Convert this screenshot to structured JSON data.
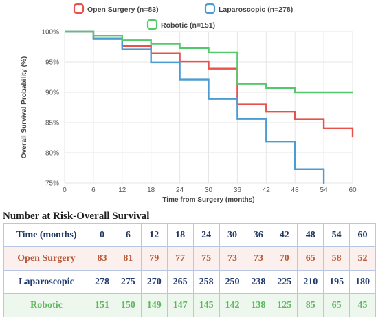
{
  "chart_data": {
    "type": "line",
    "step": true,
    "title": "",
    "xlabel": "Time from Surgery (months)",
    "ylabel": "Overall Survival Probability (%)",
    "xlim": [
      0,
      60
    ],
    "ylim": [
      75,
      100
    ],
    "x_ticks": [
      0,
      6,
      12,
      18,
      24,
      30,
      36,
      42,
      48,
      54,
      60
    ],
    "y_ticks": [
      75,
      80,
      85,
      90,
      95,
      100
    ],
    "y_tick_labels": [
      "75%",
      "80%",
      "85%",
      "90%",
      "95%",
      "100%"
    ],
    "grid": true,
    "legend_position": "top",
    "series": [
      {
        "name": "Open Surgery (n=83)",
        "color": "#e8524a",
        "x": [
          0,
          6,
          12,
          18,
          24,
          30,
          36,
          42,
          48,
          54,
          60
        ],
        "y": [
          100,
          98.8,
          97.6,
          96.4,
          95.1,
          93.9,
          88,
          86.8,
          85.5,
          84,
          82.6
        ]
      },
      {
        "name": "Laparoscopic (n=278)",
        "color": "#4c9cd4",
        "x": [
          0,
          6,
          12,
          18,
          24,
          30,
          36,
          42,
          48,
          54
        ],
        "y": [
          100,
          98.9,
          97.1,
          94.9,
          92.1,
          88.9,
          85.6,
          81.8,
          77.3,
          74.9
        ]
      },
      {
        "name": "Robotic (n=151)",
        "color": "#52c96a",
        "x": [
          0,
          6,
          12,
          18,
          24,
          30,
          36,
          42,
          48,
          54,
          60
        ],
        "y": [
          100,
          99.3,
          98.6,
          98,
          97.3,
          96.6,
          91.4,
          90.7,
          90,
          90,
          90
        ]
      }
    ]
  },
  "risk_table": {
    "title": "Number at Risk-Overall Survival",
    "header_label": "Time (months)",
    "times": [
      "0",
      "6",
      "12",
      "18",
      "24",
      "30",
      "36",
      "42",
      "48",
      "54",
      "60"
    ],
    "rows": [
      {
        "label": "Open Surgery",
        "values": [
          "83",
          "81",
          "79",
          "77",
          "75",
          "73",
          "73",
          "70",
          "65",
          "58",
          "52"
        ]
      },
      {
        "label": "Laparoscopic",
        "values": [
          "278",
          "275",
          "270",
          "265",
          "258",
          "250",
          "238",
          "225",
          "210",
          "195",
          "180"
        ]
      },
      {
        "label": "Robotic",
        "values": [
          "151",
          "150",
          "149",
          "147",
          "145",
          "142",
          "138",
          "125",
          "85",
          "65",
          "45"
        ]
      }
    ]
  }
}
